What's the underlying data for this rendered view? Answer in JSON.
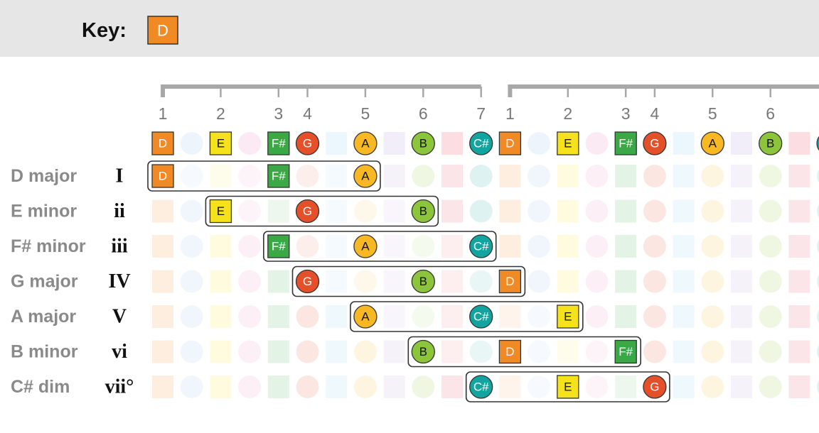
{
  "header": {
    "key_label": "Key:",
    "key": "D"
  },
  "scale": {
    "degrees": [
      "1",
      "2",
      "3",
      "4",
      "5",
      "6",
      "7",
      "1",
      "2",
      "3",
      "4",
      "5",
      "6"
    ],
    "notes": [
      "D",
      "E",
      "F#",
      "G",
      "A",
      "B",
      "C#",
      "D",
      "E",
      "F#",
      "G",
      "A",
      "B"
    ]
  },
  "chords": [
    {
      "name": "D major",
      "numeral": "I",
      "notes": [
        "D",
        "F#",
        "A"
      ]
    },
    {
      "name": "E minor",
      "numeral": "ii",
      "notes": [
        "E",
        "G",
        "B"
      ]
    },
    {
      "name": "F# minor",
      "numeral": "iii",
      "notes": [
        "F#",
        "A",
        "C#"
      ]
    },
    {
      "name": "G major",
      "numeral": "IV",
      "notes": [
        "G",
        "B",
        "D"
      ]
    },
    {
      "name": "A major",
      "numeral": "V",
      "notes": [
        "A",
        "C#",
        "E"
      ]
    },
    {
      "name": "B minor",
      "numeral": "vi",
      "notes": [
        "B",
        "D",
        "F#"
      ]
    },
    {
      "name": "C# dim",
      "numeral": "vii°",
      "notes": [
        "C#",
        "E",
        "G"
      ]
    }
  ]
}
